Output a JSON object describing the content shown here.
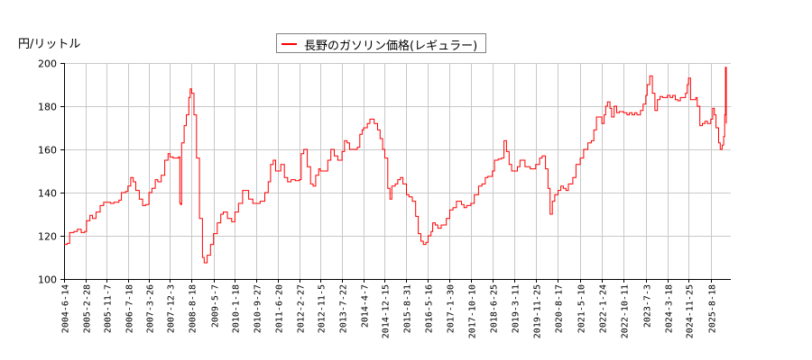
{
  "chart_data": {
    "type": "line",
    "title": "",
    "ylabel": "円/リットル",
    "xlabel": "",
    "ylim": [
      100,
      200
    ],
    "yticks": [
      100,
      120,
      140,
      160,
      180,
      200
    ],
    "grid": true,
    "legend_position": "top-center",
    "xticks": [
      "2004-6-14",
      "2005-2-28",
      "2005-11-7",
      "2006-7-18",
      "2007-3-26",
      "2007-12-3",
      "2008-8-18",
      "2009-5-7",
      "2010-1-18",
      "2010-9-27",
      "2011-6-20",
      "2012-2-27",
      "2012-11-5",
      "2013-7-22",
      "2014-4-7",
      "2014-12-15",
      "2015-8-31",
      "2016-5-16",
      "2017-1-30",
      "2017-10-10",
      "2018-6-25",
      "2019-3-11",
      "2019-11-25",
      "2020-8-17",
      "2021-5-10",
      "2022-1-24",
      "2022-10-11",
      "2023-7-3",
      "2024-3-18",
      "2024-11-25",
      "2025-8-18"
    ],
    "series": [
      {
        "name": "長野のガソリン価格(レギュラー)",
        "color": "#ff0000",
        "points": [
          [
            "2004-06-14",
            116
          ],
          [
            "2004-07-20",
            116.5
          ],
          [
            "2004-08-20",
            121.5
          ],
          [
            "2004-10-10",
            122
          ],
          [
            "2004-11-20",
            123
          ],
          [
            "2005-01-05",
            121.5
          ],
          [
            "2005-02-15",
            122
          ],
          [
            "2005-03-10",
            127
          ],
          [
            "2005-04-20",
            129.5
          ],
          [
            "2005-05-20",
            128
          ],
          [
            "2005-07-01",
            131
          ],
          [
            "2005-08-20",
            134
          ],
          [
            "2005-10-01",
            135.5
          ],
          [
            "2005-11-07",
            135.5
          ],
          [
            "2005-12-20",
            135
          ],
          [
            "2006-02-01",
            135.5
          ],
          [
            "2006-04-01",
            136.5
          ],
          [
            "2006-05-01",
            140
          ],
          [
            "2006-06-20",
            140.5
          ],
          [
            "2006-07-18",
            143
          ],
          [
            "2006-08-20",
            147
          ],
          [
            "2006-09-20",
            145
          ],
          [
            "2006-10-20",
            141
          ],
          [
            "2006-12-01",
            137
          ],
          [
            "2007-01-10",
            134
          ],
          [
            "2007-02-15",
            134.5
          ],
          [
            "2007-03-26",
            140
          ],
          [
            "2007-05-01",
            142
          ],
          [
            "2007-06-10",
            146
          ],
          [
            "2007-07-10",
            145
          ],
          [
            "2007-08-20",
            148
          ],
          [
            "2007-10-01",
            155
          ],
          [
            "2007-11-10",
            158
          ],
          [
            "2007-12-03",
            156.5
          ],
          [
            "2008-01-10",
            156
          ],
          [
            "2008-03-15",
            156.5
          ],
          [
            "2008-03-30",
            135
          ],
          [
            "2008-04-10",
            134.5
          ],
          [
            "2008-04-20",
            163
          ],
          [
            "2008-05-20",
            171
          ],
          [
            "2008-06-15",
            176
          ],
          [
            "2008-07-15",
            184
          ],
          [
            "2008-08-01",
            188
          ],
          [
            "2008-08-18",
            186
          ],
          [
            "2008-09-15",
            176
          ],
          [
            "2008-10-15",
            156
          ],
          [
            "2008-11-20",
            128
          ],
          [
            "2008-12-25",
            110
          ],
          [
            "2009-01-15",
            107.5
          ],
          [
            "2009-02-20",
            111
          ],
          [
            "2009-04-01",
            116
          ],
          [
            "2009-05-07",
            121
          ],
          [
            "2009-06-20",
            126
          ],
          [
            "2009-08-01",
            130
          ],
          [
            "2009-09-01",
            131
          ],
          [
            "2009-10-20",
            128
          ],
          [
            "2009-12-10",
            126.5
          ],
          [
            "2010-01-18",
            131
          ],
          [
            "2010-03-01",
            135
          ],
          [
            "2010-04-20",
            141
          ],
          [
            "2010-05-20",
            141
          ],
          [
            "2010-07-01",
            137
          ],
          [
            "2010-08-20",
            135
          ],
          [
            "2010-09-27",
            135
          ],
          [
            "2010-11-15",
            136
          ],
          [
            "2011-01-10",
            140
          ],
          [
            "2011-02-20",
            145
          ],
          [
            "2011-03-20",
            153
          ],
          [
            "2011-04-20",
            155
          ],
          [
            "2011-05-20,",
            150
          ],
          [
            "2011-06-20",
            150
          ],
          [
            "2011-07-20",
            153
          ],
          [
            "2011-09-01",
            147
          ],
          [
            "2011-10-10",
            145
          ],
          [
            "2011-11-20",
            146
          ],
          [
            "2012-01-10",
            145.5
          ],
          [
            "2012-02-27",
            146
          ],
          [
            "2012-03-20",
            158
          ],
          [
            "2012-04-20",
            160
          ],
          [
            "2012-06-01",
            152
          ],
          [
            "2012-07-10",
            144
          ],
          [
            "2012-08-10",
            143
          ],
          [
            "2012-09-10",
            148
          ],
          [
            "2012-10-15",
            151
          ],
          [
            "2012-11-05",
            150
          ],
          [
            "2012-12-20",
            150
          ],
          [
            "2013-02-01",
            155
          ],
          [
            "2013-03-10",
            160
          ],
          [
            "2013-04-20",
            157
          ],
          [
            "2013-06-01",
            155
          ],
          [
            "2013-07-22",
            159
          ],
          [
            "2013-08-20",
            164
          ],
          [
            "2013-09-20",
            163
          ],
          [
            "2013-10-20",
            160
          ],
          [
            "2013-11-20",
            160
          ],
          [
            "2014-01-20",
            161
          ],
          [
            "2014-02-20",
            167
          ],
          [
            "2014-03-20",
            169
          ],
          [
            "2014-04-07",
            170
          ],
          [
            "2014-05-20",
            172
          ],
          [
            "2014-06-20",
            174
          ],
          [
            "2014-08-10",
            172
          ],
          [
            "2014-09-20",
            169
          ],
          [
            "2014-10-20",
            165
          ],
          [
            "2014-11-20",
            160
          ],
          [
            "2014-12-15",
            156
          ],
          [
            "2015-01-20",
            142
          ],
          [
            "2015-02-15",
            137
          ],
          [
            "2015-03-10",
            143
          ],
          [
            "2015-04-20",
            144
          ],
          [
            "2015-05-20",
            146
          ],
          [
            "2015-06-20",
            147
          ],
          [
            "2015-07-20",
            144
          ],
          [
            "2015-08-31",
            139
          ],
          [
            "2015-10-01",
            138
          ],
          [
            "2015-11-10",
            136
          ],
          [
            "2015-12-20",
            129
          ],
          [
            "2016-01-20",
            121
          ],
          [
            "2016-02-20",
            117.5
          ],
          [
            "2016-03-20",
            116
          ],
          [
            "2016-04-20",
            117
          ],
          [
            "2016-05-16",
            120
          ],
          [
            "2016-06-20",
            122
          ],
          [
            "2016-07-10",
            126
          ],
          [
            "2016-08-10",
            125
          ],
          [
            "2016-09-10",
            123.5
          ],
          [
            "2016-10-20",
            125
          ],
          [
            "2016-11-20",
            125
          ],
          [
            "2016-12-20",
            128
          ],
          [
            "2017-01-30",
            132
          ],
          [
            "2017-03-10",
            133
          ],
          [
            "2017-04-20",
            136
          ],
          [
            "2017-05-20",
            136
          ],
          [
            "2017-06-20",
            134.5
          ],
          [
            "2017-07-20",
            133
          ],
          [
            "2017-08-20",
            134
          ],
          [
            "2017-10-10",
            135
          ],
          [
            "2017-11-20",
            139
          ],
          [
            "2018-01-10",
            143
          ],
          [
            "2018-02-20",
            144
          ],
          [
            "2018-04-01",
            147
          ],
          [
            "2018-05-01",
            147.5
          ],
          [
            "2018-06-25",
            150
          ],
          [
            "2018-07-20",
            155
          ],
          [
            "2018-09-01",
            155.5
          ],
          [
            "2018-10-10",
            156
          ],
          [
            "2018-11-10",
            164
          ],
          [
            "2018-12-10",
            159
          ],
          [
            "2019-01-10",
            153
          ],
          [
            "2019-02-10",
            150
          ],
          [
            "2019-03-11",
            150
          ],
          [
            "2019-04-20",
            152
          ],
          [
            "2019-05-20",
            155
          ],
          [
            "2019-06-20",
            155
          ],
          [
            "2019-07-20",
            152
          ],
          [
            "2019-08-20",
            152
          ],
          [
            "2019-09-20",
            151
          ],
          [
            "2019-11-25",
            153
          ],
          [
            "2020-01-10",
            156
          ],
          [
            "2020-02-10",
            157
          ],
          [
            "2020-03-20",
            151
          ],
          [
            "2020-04-20",
            142
          ],
          [
            "2020-05-15",
            130
          ],
          [
            "2020-06-10",
            136
          ],
          [
            "2020-07-10",
            139
          ],
          [
            "2020-08-17",
            141
          ],
          [
            "2020-09-20",
            143
          ],
          [
            "2020-10-20",
            142
          ],
          [
            "2020-11-20",
            141
          ],
          [
            "2020-12-20",
            144
          ],
          [
            "2021-02-10",
            147
          ],
          [
            "2021-03-20",
            153
          ],
          [
            "2021-05-10",
            156
          ],
          [
            "2021-06-20",
            160
          ],
          [
            "2021-08-10",
            163
          ],
          [
            "2021-09-20",
            164
          ],
          [
            "2021-10-20",
            169
          ],
          [
            "2021-11-20",
            175
          ],
          [
            "2022-01-24",
            172
          ],
          [
            "2022-02-20",
            176
          ],
          [
            "2022-03-10",
            180
          ],
          [
            "2022-04-01",
            182
          ],
          [
            "2022-05-01",
            179
          ],
          [
            "2022-05-20",
            175
          ],
          [
            "2022-06-20",
            180
          ],
          [
            "2022-07-20",
            177
          ],
          [
            "2022-08-20",
            177.5
          ],
          [
            "2022-10-11",
            177
          ],
          [
            "2022-11-20",
            176
          ],
          [
            "2022-12-20",
            177
          ],
          [
            "2023-01-20",
            176
          ],
          [
            "2023-02-20",
            177
          ],
          [
            "2023-03-20",
            176
          ],
          [
            "2023-05-01",
            178
          ],
          [
            "2023-06-01",
            181
          ],
          [
            "2023-07-03",
            185
          ],
          [
            "2023-07-20",
            190
          ],
          [
            "2023-08-20",
            194
          ],
          [
            "2023-09-20",
            186
          ],
          [
            "2023-10-20",
            178
          ],
          [
            "2023-11-20",
            183
          ],
          [
            "2023-12-20",
            184.5
          ],
          [
            "2024-01-20",
            184
          ],
          [
            "2024-03-18",
            185
          ],
          [
            "2024-04-20",
            184
          ],
          [
            "2024-05-20",
            185
          ],
          [
            "2024-06-20",
            183
          ],
          [
            "2024-07-20",
            182.5
          ],
          [
            "2024-08-20",
            184
          ],
          [
            "2024-09-20",
            184
          ],
          [
            "2024-10-20",
            186
          ],
          [
            "2024-11-10",
            190
          ],
          [
            "2024-11-25",
            193
          ],
          [
            "2024-12-20",
            183
          ],
          [
            "2025-01-20",
            183
          ],
          [
            "2025-02-20",
            184
          ],
          [
            "2025-03-10",
            180
          ],
          [
            "2025-04-10",
            171
          ],
          [
            "2025-05-10",
            172
          ],
          [
            "2025-06-10",
            173
          ],
          [
            "2025-07-10",
            172
          ],
          [
            "2025-08-18",
            174
          ],
          [
            "2025-09-10",
            179
          ],
          [
            "2025-10-01",
            176
          ],
          [
            "2025-10-20",
            170
          ],
          [
            "2025-11-20",
            163
          ],
          [
            "2025-12-10",
            160
          ],
          [
            "2026-01-01",
            162
          ],
          [
            "2026-01-20",
            166
          ],
          [
            "2026-02-01",
            176
          ],
          [
            "2026-02-10",
            198
          ],
          [
            "2026-02-20",
            172
          ]
        ]
      }
    ]
  },
  "ui": {
    "y_unit_label": "円/リットル",
    "legend_label": "長野のガソリン価格(レギュラー)"
  }
}
